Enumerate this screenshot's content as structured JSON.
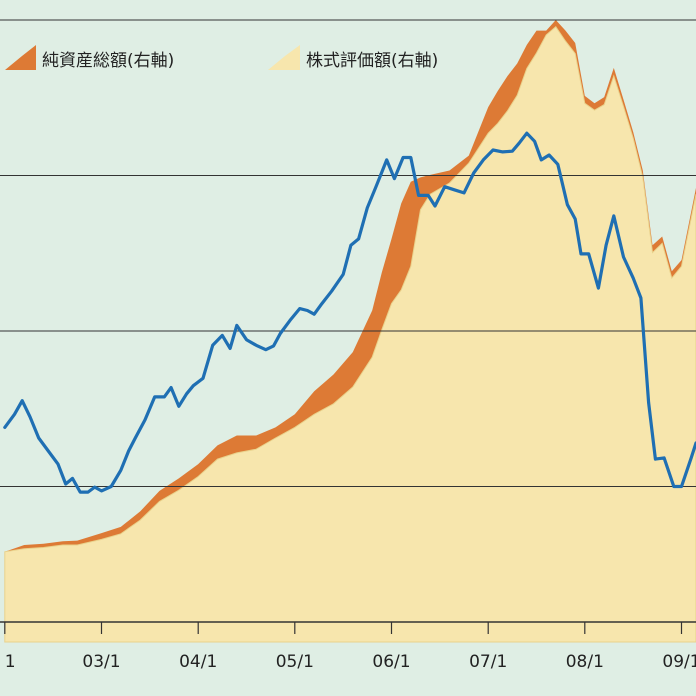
{
  "chart_data": {
    "type": "area",
    "title": "",
    "xlabel": "",
    "ylabel": "",
    "x_ticks": [
      "1",
      "03/1",
      "04/1",
      "05/1",
      "06/1",
      "07/1",
      "08/1",
      "09/1"
    ],
    "x_tick_t": [
      0,
      1,
      2,
      3,
      4,
      5,
      6,
      7
    ],
    "xlim": [
      -0.05,
      7.15
    ],
    "ylim": [
      0,
      100
    ],
    "gridlines": [
      25,
      50,
      75,
      100
    ],
    "colors": {
      "background": "#dfeee4",
      "net_assets": "#dd7a35",
      "stock_value": "#f7e6ad",
      "stock_edge": "#e9d28c",
      "line": "#1f6fb3",
      "grid": "#333333"
    },
    "legend": [
      {
        "label": "純資産総額(右軸)",
        "series": "net_assets"
      },
      {
        "label": "株式評価額(右軸)",
        "series": "stock_value"
      }
    ],
    "series": [
      {
        "name": "純資産総額(右軸)",
        "key": "net_assets",
        "type": "area",
        "points": [
          [
            0.0,
            14.5
          ],
          [
            0.2,
            15.6
          ],
          [
            0.4,
            15.8
          ],
          [
            0.6,
            16.2
          ],
          [
            0.75,
            16.3
          ],
          [
            1.0,
            17.5
          ],
          [
            1.2,
            18.5
          ],
          [
            1.4,
            21.0
          ],
          [
            1.6,
            24.3
          ],
          [
            1.8,
            26.3
          ],
          [
            2.0,
            28.6
          ],
          [
            2.2,
            31.6
          ],
          [
            2.4,
            33.2
          ],
          [
            2.6,
            33.2
          ],
          [
            2.8,
            34.5
          ],
          [
            3.0,
            36.6
          ],
          [
            3.2,
            40.3
          ],
          [
            3.4,
            43.0
          ],
          [
            3.6,
            46.6
          ],
          [
            3.8,
            53.3
          ],
          [
            3.9,
            59.4
          ],
          [
            4.0,
            64.8
          ],
          [
            4.1,
            70.5
          ],
          [
            4.2,
            74.0
          ],
          [
            4.3,
            74.7
          ],
          [
            4.4,
            75.1
          ],
          [
            4.6,
            75.8
          ],
          [
            4.8,
            78.2
          ],
          [
            5.0,
            86.0
          ],
          [
            5.1,
            88.6
          ],
          [
            5.2,
            91.0
          ],
          [
            5.3,
            93.0
          ],
          [
            5.4,
            96.0
          ],
          [
            5.5,
            98.3
          ],
          [
            5.6,
            98.3
          ],
          [
            5.7,
            100.0
          ],
          [
            5.8,
            98.3
          ],
          [
            5.9,
            96.3
          ],
          [
            6.0,
            87.8
          ],
          [
            6.1,
            86.6
          ],
          [
            6.2,
            87.6
          ],
          [
            6.3,
            92.3
          ],
          [
            6.4,
            87.2
          ],
          [
            6.5,
            82.0
          ],
          [
            6.6,
            75.8
          ],
          [
            6.7,
            63.8
          ],
          [
            6.8,
            65.2
          ],
          [
            6.9,
            59.6
          ],
          [
            7.0,
            61.4
          ],
          [
            7.15,
            73.0
          ]
        ]
      },
      {
        "name": "株式評価額(右軸)",
        "key": "stock_value",
        "type": "area",
        "points": [
          [
            0.0,
            14.5
          ],
          [
            0.2,
            15.0
          ],
          [
            0.4,
            15.2
          ],
          [
            0.6,
            15.6
          ],
          [
            0.75,
            15.6
          ],
          [
            1.0,
            16.5
          ],
          [
            1.2,
            17.4
          ],
          [
            1.4,
            19.6
          ],
          [
            1.6,
            22.6
          ],
          [
            1.8,
            24.4
          ],
          [
            2.0,
            26.6
          ],
          [
            2.2,
            29.4
          ],
          [
            2.4,
            30.4
          ],
          [
            2.6,
            31.0
          ],
          [
            2.8,
            32.8
          ],
          [
            3.0,
            34.5
          ],
          [
            3.2,
            36.6
          ],
          [
            3.4,
            38.3
          ],
          [
            3.6,
            41.0
          ],
          [
            3.8,
            45.8
          ],
          [
            3.9,
            50.2
          ],
          [
            4.0,
            54.4
          ],
          [
            4.1,
            56.6
          ],
          [
            4.2,
            60.4
          ],
          [
            4.3,
            69.5
          ],
          [
            4.4,
            72.0
          ],
          [
            4.6,
            73.8
          ],
          [
            4.8,
            77.0
          ],
          [
            5.0,
            81.8
          ],
          [
            5.1,
            83.4
          ],
          [
            5.2,
            85.4
          ],
          [
            5.3,
            87.9
          ],
          [
            5.4,
            92.2
          ],
          [
            5.5,
            94.7
          ],
          [
            5.6,
            97.6
          ],
          [
            5.7,
            98.9
          ],
          [
            5.8,
            96.6
          ],
          [
            5.9,
            94.6
          ],
          [
            6.0,
            86.6
          ],
          [
            6.1,
            85.5
          ],
          [
            6.2,
            86.4
          ],
          [
            6.3,
            91.0
          ],
          [
            6.4,
            86.1
          ],
          [
            6.5,
            81.0
          ],
          [
            6.6,
            74.7
          ],
          [
            6.7,
            62.6
          ],
          [
            6.8,
            64.1
          ],
          [
            6.9,
            58.5
          ],
          [
            7.0,
            60.4
          ],
          [
            7.15,
            72.0
          ]
        ]
      },
      {
        "name": "",
        "key": "line",
        "type": "line",
        "points": [
          [
            0.0,
            34.5
          ],
          [
            0.1,
            36.6
          ],
          [
            0.18,
            38.8
          ],
          [
            0.26,
            36.2
          ],
          [
            0.35,
            32.8
          ],
          [
            0.45,
            30.7
          ],
          [
            0.55,
            28.6
          ],
          [
            0.63,
            25.4
          ],
          [
            0.7,
            26.3
          ],
          [
            0.78,
            24.1
          ],
          [
            0.86,
            24.1
          ],
          [
            0.93,
            24.9
          ],
          [
            1.0,
            24.3
          ],
          [
            1.1,
            25.0
          ],
          [
            1.2,
            27.6
          ],
          [
            1.28,
            30.7
          ],
          [
            1.35,
            32.8
          ],
          [
            1.45,
            35.7
          ],
          [
            1.55,
            39.4
          ],
          [
            1.65,
            39.4
          ],
          [
            1.72,
            40.9
          ],
          [
            1.8,
            37.9
          ],
          [
            1.88,
            39.9
          ],
          [
            1.95,
            41.2
          ],
          [
            2.05,
            42.4
          ],
          [
            2.15,
            47.7
          ],
          [
            2.25,
            49.3
          ],
          [
            2.33,
            47.2
          ],
          [
            2.4,
            50.9
          ],
          [
            2.5,
            48.6
          ],
          [
            2.6,
            47.7
          ],
          [
            2.7,
            47.0
          ],
          [
            2.78,
            47.6
          ],
          [
            2.85,
            49.6
          ],
          [
            2.95,
            51.7
          ],
          [
            3.05,
            53.6
          ],
          [
            3.13,
            53.3
          ],
          [
            3.2,
            52.7
          ],
          [
            3.28,
            54.4
          ],
          [
            3.38,
            56.4
          ],
          [
            3.5,
            59.1
          ],
          [
            3.58,
            63.8
          ],
          [
            3.66,
            64.8
          ],
          [
            3.75,
            69.8
          ],
          [
            3.84,
            73.2
          ],
          [
            3.95,
            77.5
          ],
          [
            4.03,
            74.5
          ],
          [
            4.12,
            77.9
          ],
          [
            4.2,
            77.9
          ],
          [
            4.28,
            71.8
          ],
          [
            4.38,
            71.8
          ],
          [
            4.45,
            70.1
          ],
          [
            4.55,
            73.2
          ],
          [
            4.65,
            72.7
          ],
          [
            4.75,
            72.2
          ],
          [
            4.85,
            75.4
          ],
          [
            4.95,
            77.5
          ],
          [
            5.05,
            79.1
          ],
          [
            5.15,
            78.8
          ],
          [
            5.25,
            78.9
          ],
          [
            5.32,
            80.2
          ],
          [
            5.4,
            81.8
          ],
          [
            5.48,
            80.5
          ],
          [
            5.55,
            77.5
          ],
          [
            5.63,
            78.3
          ],
          [
            5.72,
            76.8
          ],
          [
            5.82,
            70.3
          ],
          [
            5.9,
            68.0
          ],
          [
            5.96,
            62.4
          ],
          [
            6.04,
            62.4
          ],
          [
            6.14,
            56.9
          ],
          [
            6.22,
            63.8
          ],
          [
            6.3,
            68.5
          ],
          [
            6.4,
            61.9
          ],
          [
            6.5,
            58.5
          ],
          [
            6.58,
            55.3
          ],
          [
            6.66,
            38.5
          ],
          [
            6.73,
            29.4
          ],
          [
            6.82,
            29.6
          ],
          [
            6.92,
            25.0
          ],
          [
            7.0,
            25.0
          ],
          [
            7.1,
            29.6
          ],
          [
            7.15,
            32.0
          ]
        ]
      }
    ]
  }
}
